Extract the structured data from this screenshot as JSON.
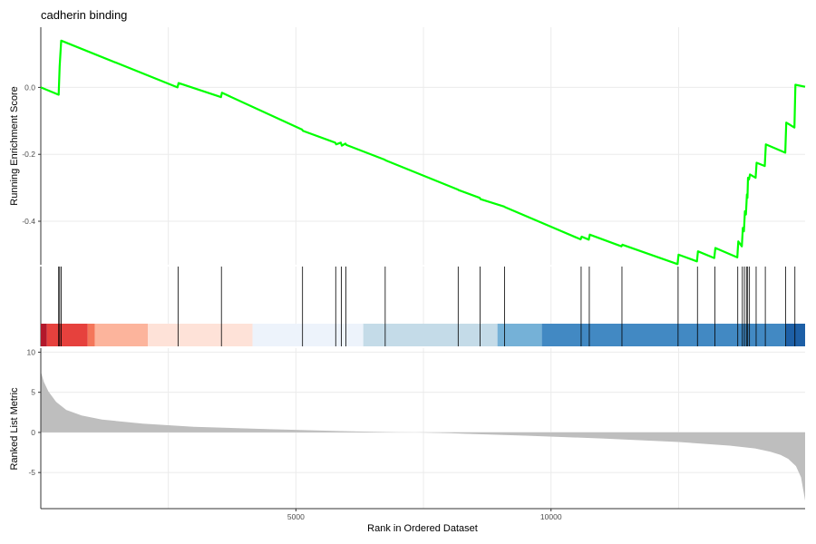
{
  "chart_data": {
    "type": "line",
    "title": "cadherin binding",
    "xlabel": "Rank in Ordered Dataset",
    "x_range": [
      0,
      14980
    ],
    "x_ticks": [
      5000,
      10000
    ],
    "x_tick_labels": [
      "5000",
      "10000"
    ],
    "panels": {
      "enrichment": {
        "ylabel": "Running Enrichment Score",
        "ylim": [
          -0.53,
          0.18
        ],
        "y_ticks": [
          0.0,
          -0.2,
          -0.4
        ],
        "y_tick_labels": [
          "0.0",
          "-0.2",
          "-0.4"
        ],
        "color": "#00ff00",
        "series": [
          {
            "x": [
              0,
              350,
              370,
              400,
              2680,
              2700,
              3530,
              3550,
              5120,
              5140,
              5770,
              5790,
              5880,
              5900,
              5970,
              5990,
              6740,
              6760,
              8170,
              8190,
              8600,
              8620,
              9080,
              9100,
              10580,
              10600,
              10740,
              10760,
              11380,
              11400,
              12480,
              12500,
              12860,
              12880,
              13200,
              13220,
              13650,
              13670,
              13740,
              13760,
              13780,
              13800,
              13820,
              13840,
              13850,
              13860,
              13880,
              13900,
              14010,
              14030,
              14190,
              14210,
              14590,
              14610,
              14770,
              14790,
              14980
            ],
            "y": [
              0.0,
              -0.022,
              0.063,
              0.14,
              0.0,
              0.013,
              -0.029,
              -0.016,
              -0.126,
              -0.13,
              -0.165,
              -0.17,
              -0.165,
              -0.174,
              -0.168,
              -0.172,
              -0.216,
              -0.218,
              -0.305,
              -0.307,
              -0.33,
              -0.334,
              -0.356,
              -0.358,
              -0.454,
              -0.446,
              -0.455,
              -0.44,
              -0.475,
              -0.47,
              -0.528,
              -0.5,
              -0.52,
              -0.49,
              -0.51,
              -0.48,
              -0.508,
              -0.46,
              -0.475,
              -0.42,
              -0.43,
              -0.37,
              -0.38,
              -0.32,
              -0.33,
              -0.27,
              -0.275,
              -0.26,
              -0.27,
              -0.225,
              -0.235,
              -0.17,
              -0.195,
              -0.105,
              -0.12,
              0.008,
              0.002
            ]
          }
        ]
      },
      "hits": {
        "positions": [
          350,
          370,
          400,
          2690,
          3540,
          5130,
          5780,
          5890,
          5980,
          6750,
          8180,
          8610,
          9090,
          10590,
          10750,
          11390,
          12490,
          12870,
          13210,
          13660,
          13750,
          13790,
          13830,
          13855,
          13890,
          14020,
          14200,
          14600,
          14780
        ]
      },
      "color_bar": {
        "segments": [
          {
            "from": 0,
            "to": 120,
            "color": "#b2182b"
          },
          {
            "from": 120,
            "to": 920,
            "color": "#e6413d"
          },
          {
            "from": 920,
            "to": 1060,
            "color": "#f4765a"
          },
          {
            "from": 1060,
            "to": 2100,
            "color": "#fcb49c"
          },
          {
            "from": 2100,
            "to": 4150,
            "color": "#fee2d8"
          },
          {
            "from": 4150,
            "to": 6320,
            "color": "#edf3fb"
          },
          {
            "from": 6320,
            "to": 8950,
            "color": "#c4dbe8"
          },
          {
            "from": 8950,
            "to": 9820,
            "color": "#75b1d7"
          },
          {
            "from": 9820,
            "to": 14600,
            "color": "#4289c3"
          },
          {
            "from": 14600,
            "to": 14980,
            "color": "#1d5fa6"
          }
        ]
      },
      "ranked_metric": {
        "ylabel": "Ranked List Metric",
        "ylim": [
          -9.5,
          10.5
        ],
        "y_ticks": [
          10,
          5,
          0,
          -5
        ],
        "y_tick_labels": [
          "10",
          "5",
          "0",
          "-5"
        ],
        "fill": "#bebebe",
        "series": [
          {
            "x": [
              0,
              60,
              150,
              300,
              500,
              800,
              1200,
              2000,
              3000,
              4500,
              6000,
              7000,
              7350,
              8000,
              9500,
              11000,
              12500,
              13500,
              14000,
              14300,
              14500,
              14650,
              14800,
              14900,
              14980
            ],
            "y": [
              7.6,
              6.3,
              5.1,
              3.8,
              2.8,
              2.1,
              1.6,
              1.1,
              0.7,
              0.4,
              0.15,
              0.03,
              0.0,
              -0.1,
              -0.4,
              -0.75,
              -1.2,
              -1.65,
              -2.0,
              -2.4,
              -2.8,
              -3.3,
              -4.2,
              -5.6,
              -8.5
            ]
          }
        ]
      }
    }
  }
}
